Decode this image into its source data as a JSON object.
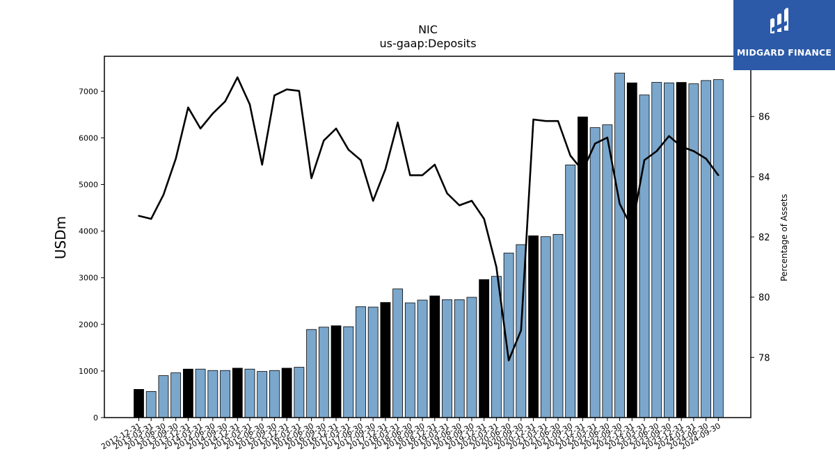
{
  "chart_data": {
    "type": "bar",
    "title": "NIC",
    "subtitle": "us-gaap:Deposits",
    "ylabel": "USDm",
    "y2label": "Percentage of Assets",
    "ylim": [
      0,
      7750
    ],
    "y2lim": [
      76.0,
      88.0
    ],
    "yticks": [
      0,
      1000,
      2000,
      3000,
      4000,
      5000,
      6000,
      7000
    ],
    "y2ticks": [
      78,
      80,
      82,
      84,
      86
    ],
    "colors": {
      "bar": "#7ba7cc",
      "bar_year_end": "#000000",
      "line": "#000000",
      "axis": "#000000"
    },
    "categories": [
      "2012-12-31",
      "2013-03-31",
      "2013-06-30",
      "2013-09-30",
      "2013-12-31",
      "2014-03-31",
      "2014-06-30",
      "2014-09-30",
      "2014-12-31",
      "2015-03-31",
      "2015-06-30",
      "2015-09-30",
      "2015-12-31",
      "2016-03-31",
      "2016-06-30",
      "2016-09-30",
      "2016-12-31",
      "2017-03-31",
      "2017-06-30",
      "2017-09-30",
      "2017-12-31",
      "2018-03-31",
      "2018-06-30",
      "2018-09-30",
      "2018-12-31",
      "2019-03-31",
      "2019-06-30",
      "2019-09-30",
      "2019-12-31",
      "2020-03-31",
      "2020-06-30",
      "2020-09-30",
      "2020-12-31",
      "2021-03-31",
      "2021-06-30",
      "2021-09-30",
      "2021-12-31",
      "2022-03-31",
      "2022-06-30",
      "2022-09-30",
      "2022-12-31",
      "2023-03-31",
      "2023-06-30",
      "2023-09-30",
      "2023-12-31",
      "2024-03-31",
      "2024-06-30",
      "2024-09-30"
    ],
    "series": [
      {
        "kind": "bar",
        "values": [
          605,
          560,
          900,
          960,
          1040,
          1040,
          1010,
          1010,
          1060,
          1040,
          990,
          1010,
          1060,
          1080,
          1890,
          1940,
          1970,
          1950,
          2380,
          2370,
          2470,
          2760,
          2460,
          2520,
          2610,
          2530,
          2530,
          2580,
          2960,
          3030,
          3530,
          3710,
          3900,
          3880,
          3930,
          5420,
          6450,
          6220,
          6280,
          7390,
          7180,
          6920,
          7190,
          7180,
          7190,
          7160,
          7230,
          7250
        ]
      },
      {
        "kind": "line",
        "axis": "right",
        "values": [
          82.7,
          82.6,
          83.4,
          84.6,
          86.3,
          85.6,
          86.1,
          86.5,
          87.3,
          86.4,
          84.4,
          86.7,
          86.9,
          86.85,
          83.95,
          85.2,
          85.6,
          84.9,
          84.55,
          83.2,
          84.25,
          85.8,
          84.05,
          84.05,
          84.4,
          83.45,
          83.05,
          83.2,
          82.6,
          81.0,
          77.9,
          78.9,
          85.9,
          85.85,
          85.85,
          84.7,
          84.2,
          85.1,
          85.3,
          83.1,
          82.3,
          84.55,
          84.85,
          85.35,
          85.0,
          84.85,
          84.6,
          84.05
        ]
      }
    ],
    "grid": false
  },
  "brand": {
    "name": "MIDGARD FINANCE",
    "icon": "midgard-logo-icon"
  }
}
